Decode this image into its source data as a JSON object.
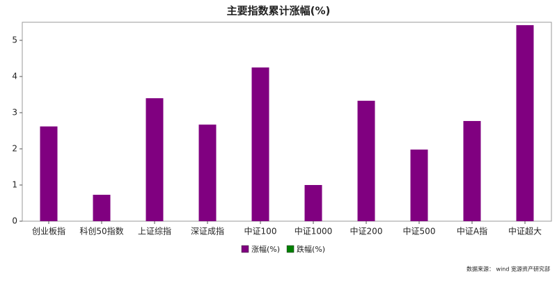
{
  "chart_data": {
    "type": "bar",
    "title": "主要指数累计涨幅(%)",
    "categories": [
      "创业板指",
      "科创50指数",
      "上证综指",
      "深证成指",
      "中证100",
      "中证1000",
      "中证200",
      "中证500",
      "中证A指",
      "中证超大"
    ],
    "series": [
      {
        "name": "涨幅(%)",
        "color": "#800080",
        "values": [
          2.62,
          0.73,
          3.4,
          2.67,
          4.25,
          1.0,
          3.33,
          1.98,
          2.77,
          5.42
        ]
      },
      {
        "name": "跌幅(%)",
        "color": "#008000",
        "values": [
          null,
          null,
          null,
          null,
          null,
          null,
          null,
          null,
          null,
          null
        ]
      }
    ],
    "ylim": [
      0,
      5.5
    ],
    "yticks": [
      0,
      1,
      2,
      3,
      4,
      5
    ],
    "grid": false,
    "legend": "bottom",
    "source": "数据来源： wind 宽源资产研究部"
  }
}
